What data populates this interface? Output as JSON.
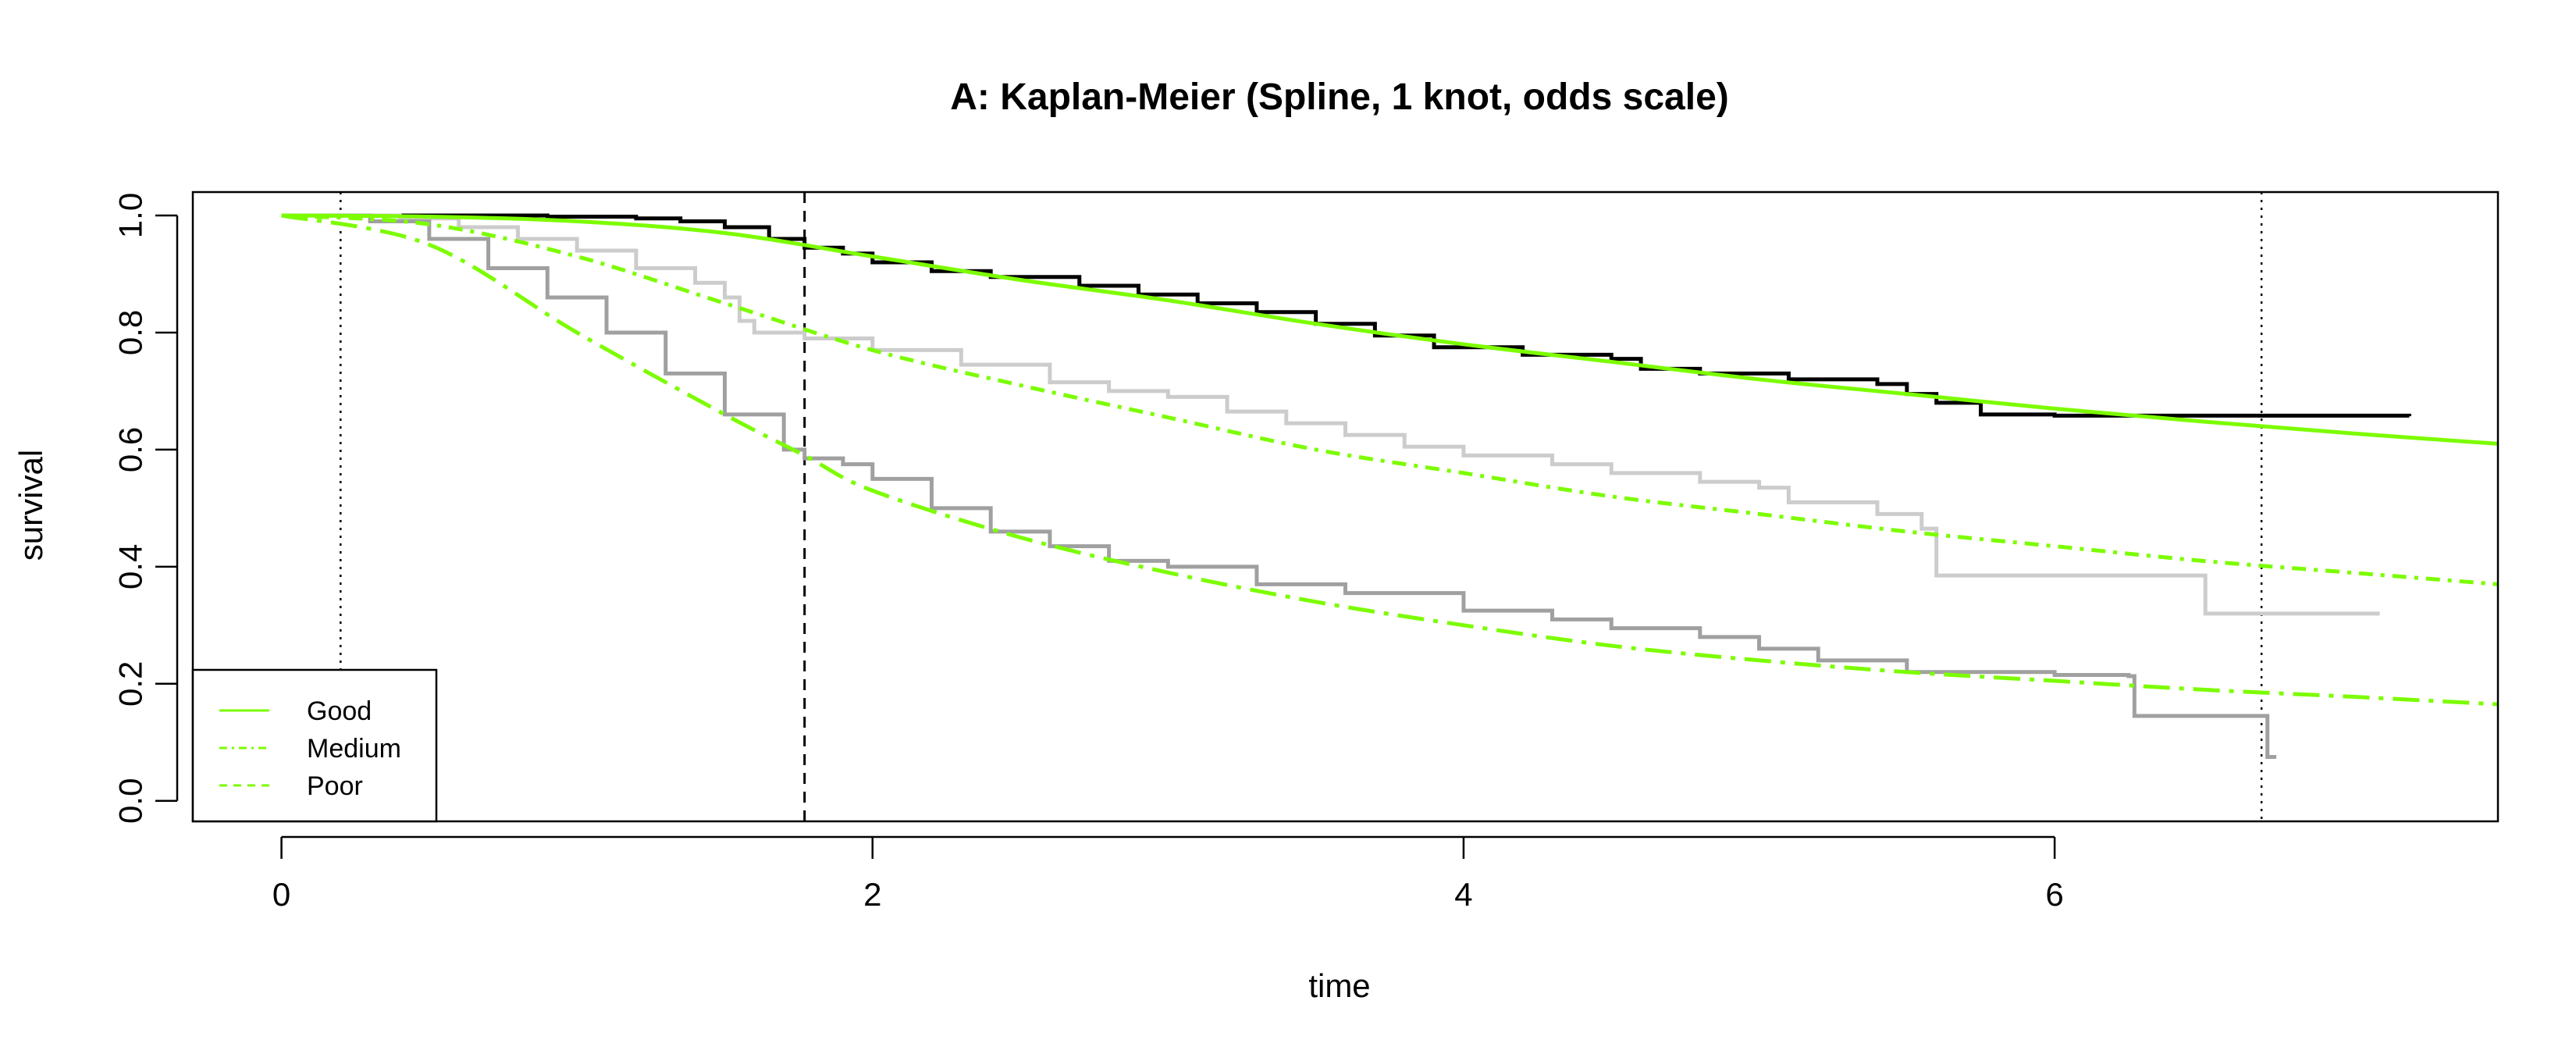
{
  "chart_data": {
    "type": "line",
    "title": "A: Kaplan-Meier (Spline, 1 knot, odds scale)",
    "xlabel": "time",
    "ylabel": "survival",
    "xlim": [
      -0.3,
      7.5
    ],
    "ylim": [
      -0.035,
      1.04
    ],
    "xticks": [
      0,
      2,
      4,
      6
    ],
    "yticks": [
      0.0,
      0.2,
      0.4,
      0.6,
      0.8,
      1.0
    ],
    "xtick_labels": [
      "0",
      "2",
      "4",
      "6"
    ],
    "ytick_labels": [
      "0.0",
      "0.2",
      "0.4",
      "0.6",
      "0.8",
      "1.0"
    ],
    "grid": false,
    "legend_position": "bottom-left",
    "reference_lines": [
      {
        "x": 0.2,
        "style": "dotted"
      },
      {
        "x": 1.77,
        "style": "dashed"
      },
      {
        "x": 6.7,
        "style": "dotted"
      }
    ],
    "km_series": [
      {
        "group": "Good",
        "color": "#000000",
        "points": [
          [
            0,
            1.0
          ],
          [
            0.55,
            1.0
          ],
          [
            0.9,
            0.998
          ],
          [
            1.2,
            0.995
          ],
          [
            1.35,
            0.99
          ],
          [
            1.5,
            0.98
          ],
          [
            1.65,
            0.96
          ],
          [
            1.77,
            0.945
          ],
          [
            1.9,
            0.935
          ],
          [
            2.0,
            0.92
          ],
          [
            2.2,
            0.905
          ],
          [
            2.4,
            0.895
          ],
          [
            2.7,
            0.88
          ],
          [
            2.9,
            0.865
          ],
          [
            3.1,
            0.85
          ],
          [
            3.3,
            0.835
          ],
          [
            3.5,
            0.815
          ],
          [
            3.7,
            0.795
          ],
          [
            3.9,
            0.775
          ],
          [
            4.2,
            0.762
          ],
          [
            4.5,
            0.755
          ],
          [
            4.6,
            0.738
          ],
          [
            4.8,
            0.73
          ],
          [
            5.1,
            0.72
          ],
          [
            5.4,
            0.712
          ],
          [
            5.5,
            0.695
          ],
          [
            5.6,
            0.68
          ],
          [
            5.75,
            0.66
          ],
          [
            6.0,
            0.658
          ],
          [
            6.5,
            0.658
          ],
          [
            7.2,
            0.657
          ]
        ]
      },
      {
        "group": "Medium",
        "color": "#cccccc",
        "points": [
          [
            0,
            1.0
          ],
          [
            0.4,
            0.995
          ],
          [
            0.6,
            0.98
          ],
          [
            0.8,
            0.96
          ],
          [
            1.0,
            0.94
          ],
          [
            1.2,
            0.91
          ],
          [
            1.4,
            0.885
          ],
          [
            1.5,
            0.86
          ],
          [
            1.55,
            0.82
          ],
          [
            1.6,
            0.8
          ],
          [
            1.77,
            0.79
          ],
          [
            2.0,
            0.77
          ],
          [
            2.3,
            0.745
          ],
          [
            2.6,
            0.715
          ],
          [
            2.8,
            0.7
          ],
          [
            3.0,
            0.69
          ],
          [
            3.2,
            0.665
          ],
          [
            3.4,
            0.645
          ],
          [
            3.6,
            0.625
          ],
          [
            3.8,
            0.605
          ],
          [
            4.0,
            0.59
          ],
          [
            4.3,
            0.575
          ],
          [
            4.5,
            0.56
          ],
          [
            4.8,
            0.545
          ],
          [
            5.0,
            0.535
          ],
          [
            5.1,
            0.51
          ],
          [
            5.4,
            0.49
          ],
          [
            5.55,
            0.465
          ],
          [
            5.6,
            0.385
          ],
          [
            6.0,
            0.385
          ],
          [
            6.5,
            0.385
          ],
          [
            6.51,
            0.32
          ],
          [
            7.1,
            0.32
          ]
        ]
      },
      {
        "group": "Poor",
        "color": "#a0a0a0",
        "points": [
          [
            0,
            1.0
          ],
          [
            0.3,
            0.99
          ],
          [
            0.5,
            0.96
          ],
          [
            0.7,
            0.91
          ],
          [
            0.9,
            0.86
          ],
          [
            1.1,
            0.8
          ],
          [
            1.3,
            0.73
          ],
          [
            1.5,
            0.66
          ],
          [
            1.7,
            0.6
          ],
          [
            1.77,
            0.585
          ],
          [
            1.9,
            0.575
          ],
          [
            2.0,
            0.55
          ],
          [
            2.2,
            0.5
          ],
          [
            2.4,
            0.46
          ],
          [
            2.6,
            0.435
          ],
          [
            2.8,
            0.41
          ],
          [
            3.0,
            0.4
          ],
          [
            3.3,
            0.37
          ],
          [
            3.6,
            0.355
          ],
          [
            4.0,
            0.325
          ],
          [
            4.3,
            0.31
          ],
          [
            4.5,
            0.295
          ],
          [
            4.8,
            0.28
          ],
          [
            5.0,
            0.26
          ],
          [
            5.2,
            0.24
          ],
          [
            5.5,
            0.22
          ],
          [
            6.0,
            0.215
          ],
          [
            6.25,
            0.213
          ],
          [
            6.27,
            0.145
          ],
          [
            6.7,
            0.145
          ],
          [
            6.72,
            0.075
          ],
          [
            6.75,
            0.075
          ]
        ]
      }
    ],
    "model_series": [
      {
        "name": "Good",
        "color": "#7cfc00",
        "dash": "solid",
        "x": [
          0,
          0.5,
          1.0,
          1.5,
          2.0,
          2.5,
          3.0,
          3.5,
          4.0,
          4.5,
          5.0,
          5.5,
          6.0,
          6.5,
          7.0,
          7.5
        ],
        "y": [
          1.0,
          0.998,
          0.99,
          0.97,
          0.93,
          0.89,
          0.855,
          0.815,
          0.78,
          0.75,
          0.72,
          0.695,
          0.67,
          0.648,
          0.628,
          0.61
        ]
      },
      {
        "name": "Medium",
        "color": "#7cfc00",
        "dash": "dash-dot",
        "x": [
          0,
          0.5,
          1.0,
          1.5,
          2.0,
          2.5,
          3.0,
          3.5,
          4.0,
          4.5,
          5.0,
          5.5,
          6.0,
          6.5,
          7.0,
          7.5
        ],
        "y": [
          1.0,
          0.985,
          0.93,
          0.85,
          0.77,
          0.71,
          0.655,
          0.6,
          0.56,
          0.52,
          0.49,
          0.46,
          0.435,
          0.41,
          0.39,
          0.37
        ]
      },
      {
        "name": "Poor",
        "color": "#7cfc00",
        "dash": "long-dash-dot",
        "x": [
          0,
          0.5,
          1.0,
          1.5,
          1.77,
          2.0,
          2.5,
          3.0,
          3.5,
          4.0,
          4.5,
          5.0,
          5.5,
          6.0,
          6.5,
          7.0,
          7.5
        ],
        "y": [
          1.0,
          0.95,
          0.8,
          0.66,
          0.59,
          0.53,
          0.45,
          0.39,
          0.34,
          0.3,
          0.265,
          0.24,
          0.22,
          0.205,
          0.19,
          0.178,
          0.165
        ]
      }
    ],
    "legend": [
      {
        "label": "Good",
        "color": "#7cfc00",
        "dash": "solid"
      },
      {
        "label": "Medium",
        "color": "#7cfc00",
        "dash": "dash-dot"
      },
      {
        "label": "Poor",
        "color": "#7cfc00",
        "dash": "dashed"
      }
    ]
  }
}
